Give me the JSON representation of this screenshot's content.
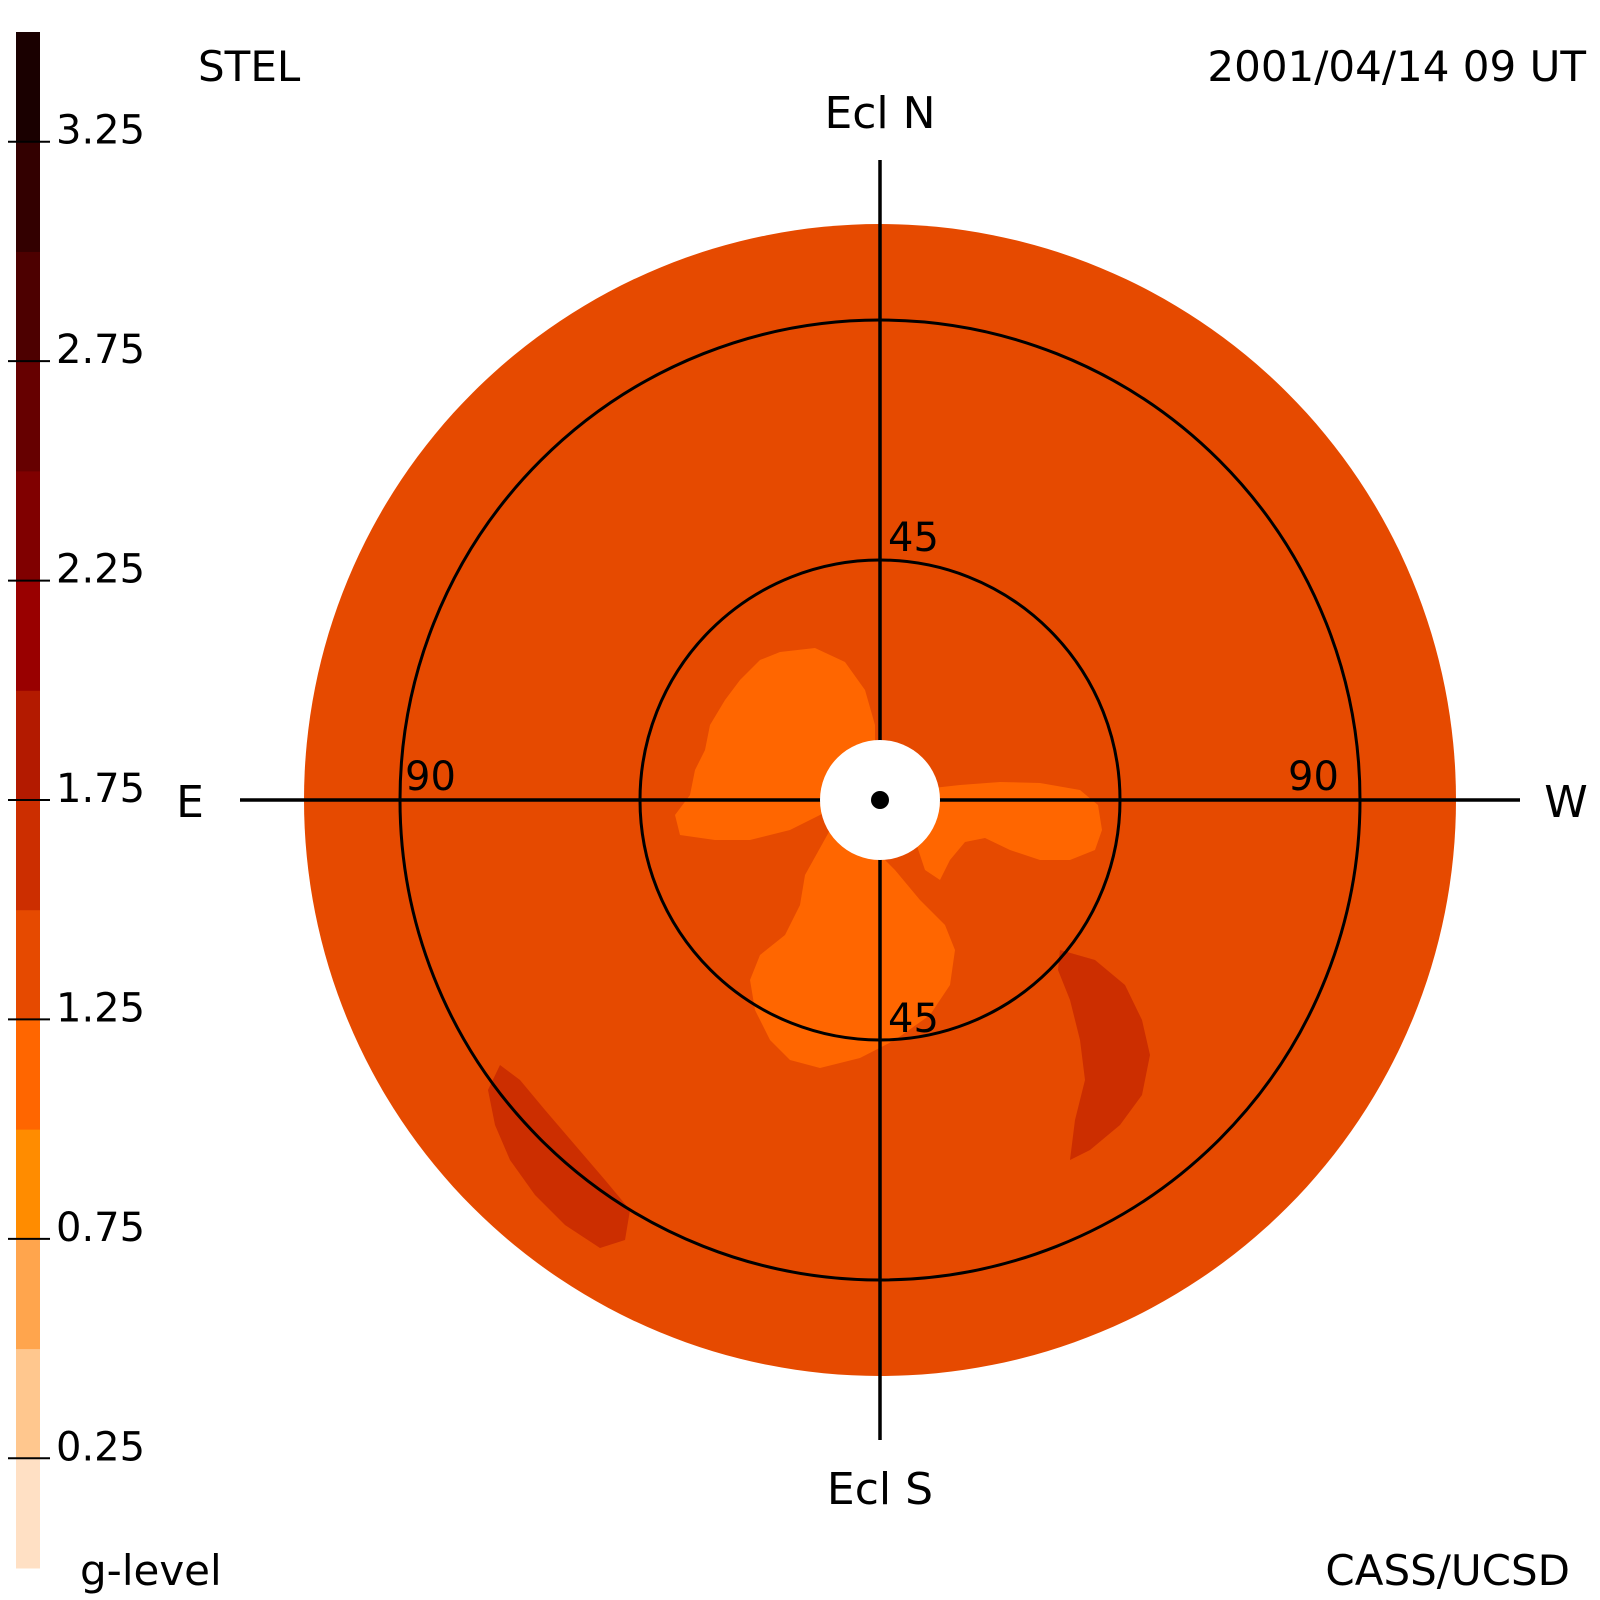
{
  "header": {
    "left": "STEL",
    "right": "2001/04/14 09 UT"
  },
  "footer": {
    "left": "g-level",
    "right": "CASS/UCSD"
  },
  "directions": {
    "north": "Ecl N",
    "south": "Ecl S",
    "east": "E",
    "west": "W"
  },
  "ring_labels": {
    "inner_top": "45",
    "inner_bottom": "45",
    "outer_left": "90",
    "outer_right": "90"
  },
  "colors": {
    "background_disk": "#e64a00",
    "bright_blob": "#ff6600",
    "dark_patch": "#cc2e00",
    "sun_disk": "#ffffff",
    "lines": "#000000"
  },
  "chart_data": {
    "type": "heatmap",
    "projection": "polar sky map centered on the Sun",
    "ring_radii_deg": [
      45,
      90
    ],
    "colorbar": {
      "label": "g-level",
      "range": [
        0.0,
        3.5
      ],
      "tick_labels": [
        "3.25",
        "2.75",
        "2.25",
        "1.75",
        "1.25",
        "0.75",
        "0.25"
      ],
      "tick_values": [
        3.25,
        2.75,
        2.25,
        1.75,
        1.25,
        0.75,
        0.25
      ],
      "levels": [
        {
          "from": 0.0,
          "to": 0.25,
          "color": "#ffe0c4"
        },
        {
          "from": 0.25,
          "to": 0.5,
          "color": "#ffc78e"
        },
        {
          "from": 0.5,
          "to": 0.75,
          "color": "#ffa54d"
        },
        {
          "from": 0.75,
          "to": 1.0,
          "color": "#ff8c00"
        },
        {
          "from": 1.0,
          "to": 1.25,
          "color": "#ff6600"
        },
        {
          "from": 1.25,
          "to": 1.5,
          "color": "#e64a00"
        },
        {
          "from": 1.5,
          "to": 1.75,
          "color": "#cc2e00"
        },
        {
          "from": 1.75,
          "to": 2.0,
          "color": "#b31a00"
        },
        {
          "from": 2.0,
          "to": 2.25,
          "color": "#990000"
        },
        {
          "from": 2.25,
          "to": 2.5,
          "color": "#800000"
        },
        {
          "from": 2.5,
          "to": 2.75,
          "color": "#660000"
        },
        {
          "from": 2.75,
          "to": 3.0,
          "color": "#4d0000"
        },
        {
          "from": 3.0,
          "to": 3.25,
          "color": "#330000"
        },
        {
          "from": 3.25,
          "to": 3.5,
          "color": "#1a0000"
        }
      ]
    }
  }
}
